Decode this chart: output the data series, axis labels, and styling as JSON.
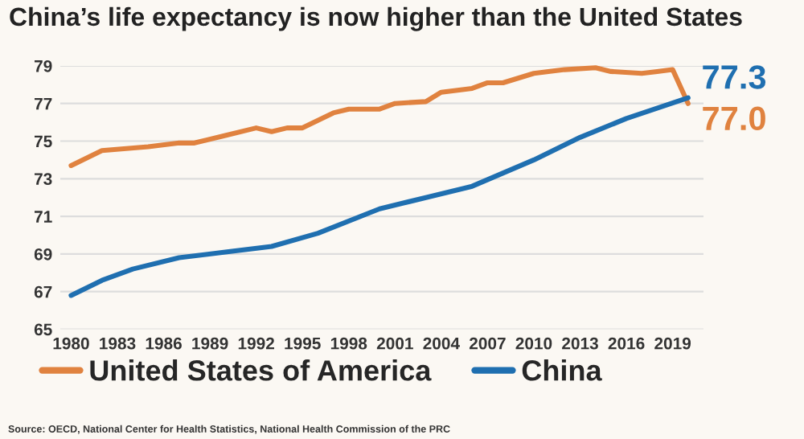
{
  "chart_data": {
    "type": "line",
    "title": "China’s life expectancy is now higher than the United States",
    "x": [
      1980,
      1982,
      1985,
      1987,
      1988,
      1990,
      1992,
      1993,
      1994,
      1995,
      1997,
      1998,
      2000,
      2001,
      2003,
      2004,
      2006,
      2007,
      2008,
      2010,
      2012,
      2014,
      2015,
      2017,
      2018,
      2019,
      2020
    ],
    "series": [
      {
        "name": "United States of America",
        "color": "#e0823f",
        "values": [
          73.7,
          74.5,
          74.7,
          74.9,
          74.9,
          75.3,
          75.7,
          75.5,
          75.7,
          75.7,
          76.5,
          76.7,
          76.7,
          77.0,
          77.1,
          77.6,
          77.8,
          78.1,
          78.1,
          78.6,
          78.8,
          78.9,
          78.7,
          78.6,
          78.7,
          78.8,
          77.0
        ],
        "value_labels": [
          null,
          null,
          null,
          null,
          null,
          null,
          null,
          null,
          null,
          null,
          null,
          null,
          null,
          null,
          null,
          null,
          null,
          null,
          null,
          null,
          null,
          null,
          null,
          null,
          null,
          null,
          "77.0"
        ]
      },
      {
        "name": "China",
        "color": "#1f6fb0",
        "x": [
          1980,
          1982,
          1984,
          1987,
          1990,
          1993,
          1996,
          2000,
          2003,
          2006,
          2010,
          2013,
          2016,
          2020
        ],
        "values": [
          66.8,
          67.6,
          68.2,
          68.8,
          69.1,
          69.4,
          70.1,
          71.4,
          72.0,
          72.6,
          74.0,
          75.2,
          76.2,
          77.3
        ],
        "value_labels": [
          null,
          null,
          null,
          null,
          null,
          null,
          null,
          null,
          null,
          null,
          null,
          null,
          null,
          "77.3"
        ]
      }
    ],
    "xlim": [
      1979.3,
      2021
    ],
    "xticks": [
      1980,
      1983,
      1986,
      1989,
      1992,
      1995,
      1998,
      2001,
      2004,
      2007,
      2010,
      2013,
      2016,
      2019
    ],
    "ylim": [
      65,
      79
    ],
    "yticks": [
      65,
      67,
      69,
      71,
      73,
      75,
      77,
      79
    ],
    "grid": "y",
    "legend": "bottom",
    "line_style": "solid",
    "annotations": [
      "Source: OECD, National Center for Health Statistics, National Health Commission of the PRC"
    ]
  }
}
